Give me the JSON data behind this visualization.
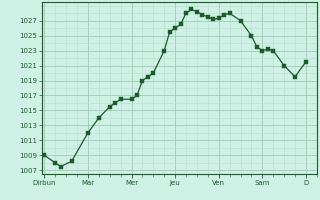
{
  "background_color": "#cff0e4",
  "line_color": "#1a5c2a",
  "marker_color": "#1a5c2a",
  "grid_major_color": "#a0c8b8",
  "grid_minor_color": "#b8ddd0",
  "axis_color": "#1a5c2a",
  "text_color": "#1a5c2a",
  "ylim": [
    1006.5,
    1029.5
  ],
  "yticks": [
    1007,
    1009,
    1011,
    1013,
    1015,
    1017,
    1019,
    1021,
    1023,
    1025,
    1027
  ],
  "day_labels": [
    "Dirbun",
    "Mar",
    "Mer",
    "Jeu",
    "Ven",
    "Sam",
    "D"
  ],
  "day_positions": [
    0,
    8,
    16,
    24,
    32,
    40,
    48
  ],
  "xlim": [
    -0.5,
    50
  ],
  "x": [
    0,
    2,
    3,
    5,
    8,
    10,
    12,
    13,
    14,
    16,
    17,
    18,
    19,
    20,
    22,
    23,
    24,
    25,
    26,
    27,
    28,
    29,
    30,
    31,
    32,
    33,
    34,
    36,
    38,
    39,
    40,
    41,
    42,
    44,
    46,
    48
  ],
  "y": [
    1009,
    1008,
    1007.5,
    1008.2,
    1012,
    1014,
    1015.5,
    1016,
    1016.5,
    1016.5,
    1017,
    1019,
    1019.5,
    1020,
    1023,
    1025.5,
    1026,
    1026.5,
    1028,
    1028.5,
    1028.2,
    1027.8,
    1027.5,
    1027.2,
    1027.3,
    1027.8,
    1028,
    1027,
    1025,
    1023.5,
    1023,
    1023.2,
    1023,
    1021,
    1019.5,
    1021.5
  ]
}
